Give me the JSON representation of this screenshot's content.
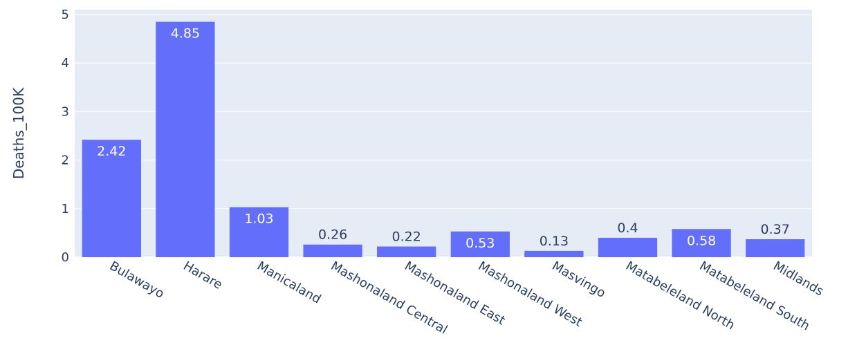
{
  "chart_data": {
    "type": "bar",
    "categories": [
      "Bulawayo",
      "Harare",
      "Manicaland",
      "Mashonaland Central",
      "Mashonaland East",
      "Mashonaland West",
      "Masvingo",
      "Matabeleland North",
      "Matabeleland South",
      "Midlands"
    ],
    "values": [
      2.42,
      4.85,
      1.03,
      0.26,
      0.22,
      0.53,
      0.13,
      0.4,
      0.58,
      0.37
    ],
    "data_labels": [
      "2.42",
      "4.85",
      "1.03",
      "0.26",
      "0.22",
      "0.53",
      "0.13",
      "0.4",
      "0.58",
      "0.37"
    ],
    "title": "",
    "xlabel": "",
    "ylabel": "Deaths_100K",
    "ylim": [
      0,
      5.1
    ],
    "yticks": [
      0,
      1,
      2,
      3,
      4,
      5
    ],
    "grid": true,
    "legend": "none",
    "colors": {
      "bar": "#636efa",
      "plot_background": "#e5ecf6",
      "gridline": "#ffffff",
      "text": "#2a3f5f",
      "label_inside": "#ffffff"
    }
  }
}
